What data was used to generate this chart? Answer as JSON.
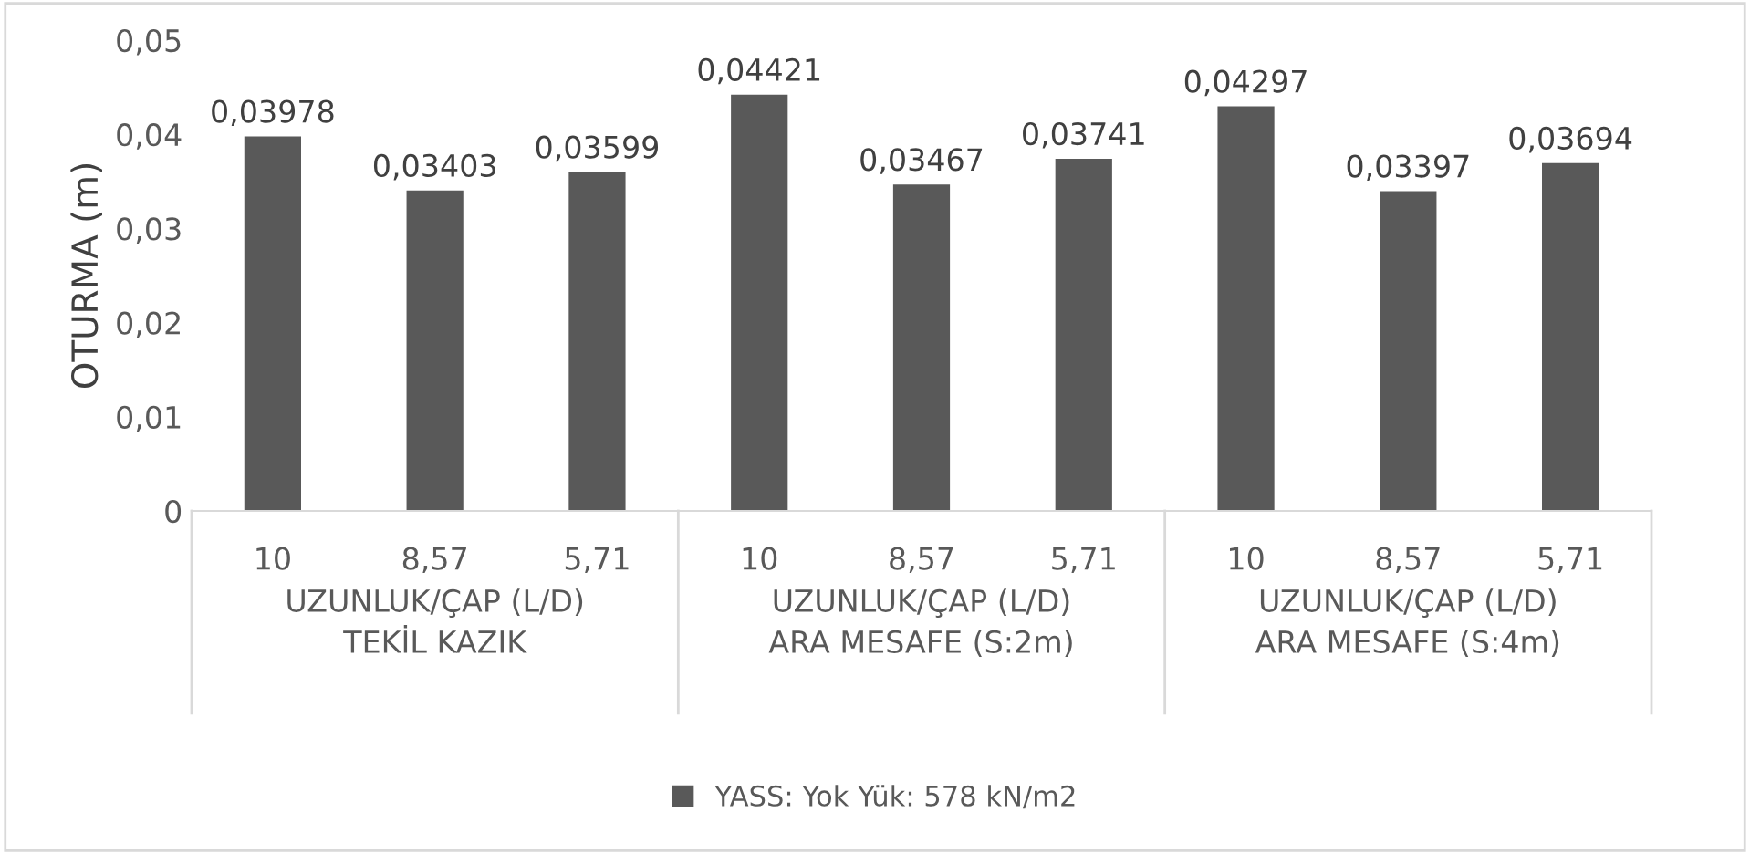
{
  "chart_data": {
    "type": "bar",
    "ylabel": "OTURMA (m)",
    "categories": [
      "10",
      "8,57",
      "5,71",
      "10",
      "8,57",
      "5,71",
      "10",
      "8,57",
      "5,71"
    ],
    "series": [
      {
        "name": "YASS: Yok Yük: 578 kN/m2",
        "color": "#595959",
        "values": [
          0.03978,
          0.03403,
          0.03599,
          0.04421,
          0.03467,
          0.03741,
          0.04297,
          0.03397,
          0.03694
        ],
        "value_labels": [
          "0,03978",
          "0,03403",
          "0,03599",
          "0,04421",
          "0,03467",
          "0,03741",
          "0,04297",
          "0,03397",
          "0,03694"
        ]
      }
    ],
    "annotations": [
      "UZUNLUK/ÇAP (L/D)\nTEKİL KAZIK",
      "UZUNLUK/ÇAP (L/D)\nARA MESAFE (S:2m)",
      "UZUNLUK/ÇAP (L/D)\nARA MESAFE (S:4m)"
    ],
    "ylim": [
      0,
      0.05
    ],
    "yticks": [
      0,
      {
        "value": 0.01,
        "label": "0,01"
      },
      {
        "value": 0.02,
        "label": "0,02"
      },
      {
        "value": 0.03,
        "label": "0,03"
      },
      {
        "value": 0.04,
        "label": "0,04"
      },
      {
        "value": 0.05,
        "label": "0,05"
      }
    ],
    "grid": false,
    "legend": "bottom"
  }
}
